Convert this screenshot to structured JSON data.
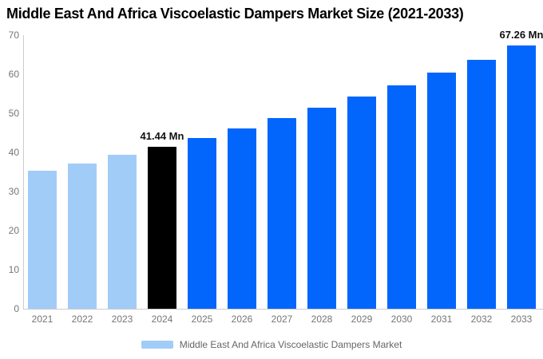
{
  "chart_data": {
    "type": "bar",
    "title": "Middle East And Africa Viscoelastic Dampers Market Size (2021-2033)",
    "unit": "Mn",
    "categories": [
      "2021",
      "2022",
      "2023",
      "2024",
      "2025",
      "2026",
      "2027",
      "2028",
      "2029",
      "2030",
      "2031",
      "2032",
      "2033"
    ],
    "values": [
      35.3,
      37.2,
      39.3,
      41.44,
      43.7,
      46.2,
      48.7,
      51.4,
      54.2,
      57.2,
      60.4,
      63.7,
      67.26
    ],
    "point_labels": [
      "",
      "",
      "",
      "41.44 Mn",
      "",
      "",
      "",
      "",
      "",
      "",
      "",
      "",
      "67.26 Mn"
    ],
    "bar_colors": [
      "#A2CCF8",
      "#A2CCF8",
      "#A2CCF8",
      "#000000",
      "#0266FC",
      "#0266FC",
      "#0266FC",
      "#0266FC",
      "#0266FC",
      "#0266FC",
      "#0266FC",
      "#0266FC",
      "#0266FC"
    ],
    "xlabel": "",
    "ylabel": "",
    "ylim": [
      0,
      70
    ],
    "yticks": [
      0,
      10,
      20,
      30,
      40,
      50,
      60,
      70
    ],
    "grid": false,
    "legend_position": "bottom-center",
    "legend": [
      {
        "label": "Middle East And Africa Viscoelastic Dampers Market",
        "color": "#A2CCF8"
      }
    ]
  },
  "colors": {
    "light_blue": "#A2CCF8",
    "accent_blue": "#0266FC",
    "highlight_black": "#000000",
    "axis_line": "#CCCCCC",
    "axis_text": "#757575",
    "legend_text": "#666666",
    "background": "#FFFFFF"
  }
}
